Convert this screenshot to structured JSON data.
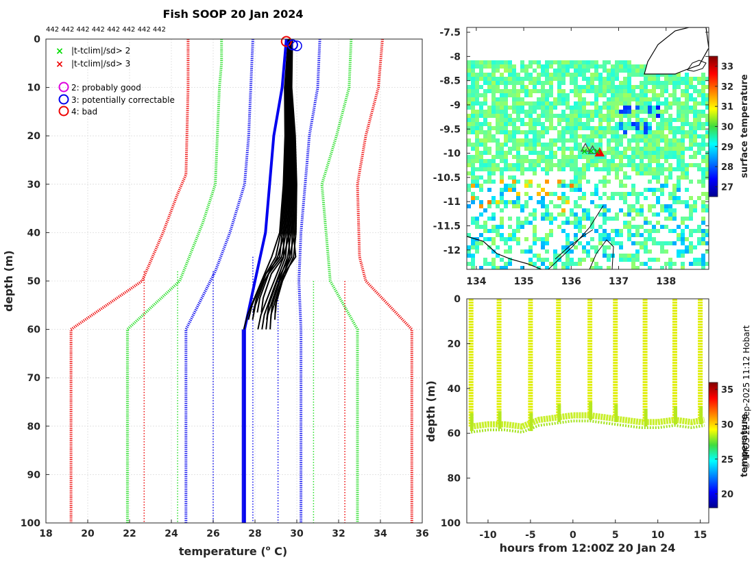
{
  "chart_data": [
    {
      "type": "line",
      "name": "profile-panel",
      "title": "Fish SOOP 20 Jan 2024",
      "profile_counts": "442 442 442 442 442 442 442 442",
      "xlabel": "temperature (",
      "xlabel_unit_sup": "o",
      "xlabel_unit": " C)",
      "ylabel": "depth (m)",
      "xlim": [
        18,
        36
      ],
      "ylim": [
        0,
        100
      ],
      "xticks": [
        18,
        20,
        22,
        24,
        26,
        28,
        30,
        32,
        34,
        36
      ],
      "yticks": [
        0,
        10,
        20,
        30,
        40,
        50,
        60,
        70,
        80,
        90,
        100
      ],
      "legend": [
        {
          "marker": "x",
          "color": "#00dd00",
          "label": "|t-tclim|/sd> 2"
        },
        {
          "marker": "x",
          "color": "#ee0000",
          "label": "|t-tclim|/sd> 3"
        },
        {
          "marker": "o",
          "color": "#dd00dd",
          "label": "2: probably good"
        },
        {
          "marker": "o",
          "color": "#0000ee",
          "label": "3: potentially correctable"
        },
        {
          "marker": "o",
          "color": "#ee0000",
          "label": "4: bad"
        }
      ],
      "series": [
        {
          "name": "red-left-thick",
          "color": "#ee0000",
          "style": "thick",
          "points": [
            [
              24.8,
              0
            ],
            [
              24.8,
              10
            ],
            [
              24.7,
              28
            ],
            [
              24.3,
              32
            ],
            [
              23.6,
              40
            ],
            [
              22.6,
              50
            ],
            [
              19.2,
              60
            ],
            [
              19.2,
              100
            ]
          ]
        },
        {
          "name": "green-left-thick",
          "color": "#22dd22",
          "style": "thick",
          "points": [
            [
              26.4,
              0
            ],
            [
              26.4,
              5
            ],
            [
              26.3,
              10
            ],
            [
              26.1,
              30
            ],
            [
              25.5,
              38
            ],
            [
              24.4,
              50
            ],
            [
              21.9,
              60
            ],
            [
              21.9,
              100
            ]
          ]
        },
        {
          "name": "blue-left-thick",
          "color": "#0000ee",
          "style": "thick",
          "points": [
            [
              27.9,
              0
            ],
            [
              27.7,
              20
            ],
            [
              27.5,
              30
            ],
            [
              26.8,
              40
            ],
            [
              26.1,
              48
            ],
            [
              24.7,
              60
            ],
            [
              24.7,
              100
            ]
          ]
        },
        {
          "name": "blue-center",
          "color": "#0000ee",
          "style": "solid",
          "points": [
            [
              29.5,
              0
            ],
            [
              29.3,
              10
            ],
            [
              28.9,
              20
            ],
            [
              28.5,
              40
            ],
            [
              28.0,
              50
            ],
            [
              27.5,
              60
            ],
            [
              27.5,
              100
            ]
          ]
        },
        {
          "name": "blue-right-thick",
          "color": "#0000ee",
          "style": "thick",
          "points": [
            [
              31.1,
              0
            ],
            [
              31.0,
              10
            ],
            [
              30.6,
              20
            ],
            [
              30.2,
              40
            ],
            [
              30.1,
              50
            ],
            [
              30.2,
              60
            ],
            [
              30.2,
              100
            ]
          ]
        },
        {
          "name": "green-right-thick",
          "color": "#22dd22",
          "style": "thick",
          "points": [
            [
              32.6,
              0
            ],
            [
              32.5,
              10
            ],
            [
              31.9,
              20
            ],
            [
              31.2,
              30
            ],
            [
              31.5,
              45
            ],
            [
              31.6,
              50
            ],
            [
              32.9,
              60
            ],
            [
              32.9,
              100
            ]
          ]
        },
        {
          "name": "red-right-thick",
          "color": "#ee0000",
          "style": "thick",
          "points": [
            [
              34.1,
              0
            ],
            [
              33.9,
              10
            ],
            [
              33.3,
              20
            ],
            [
              32.9,
              30
            ],
            [
              33.0,
              45
            ],
            [
              33.3,
              50
            ],
            [
              35.5,
              60
            ],
            [
              35.5,
              100
            ]
          ]
        },
        {
          "name": "red-left-thin",
          "color": "#ee0000",
          "style": "thin",
          "points": [
            [
              22.7,
              48
            ],
            [
              22.7,
              100
            ]
          ]
        },
        {
          "name": "green-left-thin",
          "color": "#22dd22",
          "style": "thin",
          "points": [
            [
              24.3,
              48
            ],
            [
              24.3,
              100
            ]
          ]
        },
        {
          "name": "blue-left-thin",
          "color": "#0000ee",
          "style": "thin",
          "points": [
            [
              26.0,
              48
            ],
            [
              26.0,
              100
            ]
          ]
        },
        {
          "name": "blue-mid-thin",
          "color": "#0000ee",
          "style": "thin",
          "points": [
            [
              27.9,
              45
            ],
            [
              27.9,
              100
            ]
          ]
        },
        {
          "name": "blue-right-thin",
          "color": "#0000ee",
          "style": "thin",
          "points": [
            [
              29.1,
              50
            ],
            [
              29.1,
              100
            ]
          ]
        },
        {
          "name": "green-right-thin",
          "color": "#22dd22",
          "style": "thin",
          "points": [
            [
              30.8,
              50
            ],
            [
              30.8,
              100
            ]
          ]
        },
        {
          "name": "red-right-thin",
          "color": "#ee0000",
          "style": "thin",
          "points": [
            [
              32.3,
              50
            ],
            [
              32.3,
              100
            ]
          ]
        },
        {
          "name": "profiles-black",
          "color": "#000000",
          "style": "profiles",
          "points": [
            [
              29.7,
              0
            ],
            [
              29.6,
              10
            ],
            [
              29.7,
              20
            ],
            [
              29.7,
              30
            ],
            [
              29.6,
              40
            ],
            [
              29.3,
              45
            ],
            [
              28.7,
              50
            ],
            [
              28.3,
              55
            ],
            [
              28.2,
              58
            ]
          ]
        }
      ],
      "qc_circles": [
        {
          "name": "qc-bad",
          "color": "#ee0000",
          "x": 29.5,
          "y": 0.5
        },
        {
          "name": "qc-correctable",
          "color": "#0000ee",
          "x": 29.8,
          "y": 1.2
        }
      ]
    },
    {
      "type": "heatmap",
      "name": "sst-map",
      "xlim": [
        133.8,
        138.9
      ],
      "ylim": [
        -12.4,
        -7.4
      ],
      "xticks": [
        134,
        135,
        136,
        137,
        138
      ],
      "yticks": [
        -7.5,
        -8,
        -8.5,
        -9,
        -9.5,
        -10,
        -10.5,
        -11,
        -11.5,
        -12
      ],
      "colorbar_label": "surface temperature",
      "colorbar_range": [
        26.5,
        33.5
      ],
      "colorbar_ticks": [
        27,
        28,
        29,
        30,
        31,
        32,
        33
      ],
      "markers": [
        {
          "lon": 136.3,
          "lat": -9.9
        },
        {
          "lon": 136.45,
          "lat": -9.95
        },
        {
          "lon": 136.6,
          "lat": -10.0
        }
      ]
    },
    {
      "type": "scatter",
      "name": "depth-time-section",
      "xlabel": "hours from 12:00Z 20 Jan 24",
      "ylabel": "depth (m)",
      "xlim": [
        -12.5,
        16
      ],
      "ylim": [
        0,
        100
      ],
      "xticks": [
        -10,
        -5,
        0,
        5,
        10,
        15
      ],
      "yticks": [
        0,
        20,
        40,
        60,
        80,
        100
      ],
      "colorbar_label": "temperature",
      "colorbar_range": [
        18,
        36
      ],
      "colorbar_ticks": [
        20,
        25,
        30,
        35
      ],
      "casts_hours": [
        -12,
        -8.7,
        -5,
        -1.7,
        2,
        5,
        8.5,
        12,
        15
      ],
      "bottom_depth": [
        [
          -12,
          57
        ],
        [
          -10,
          56
        ],
        [
          -8,
          56
        ],
        [
          -6,
          57
        ],
        [
          -4,
          54
        ],
        [
          -2,
          53
        ],
        [
          0,
          52
        ],
        [
          2,
          52
        ],
        [
          4,
          53
        ],
        [
          6,
          54
        ],
        [
          8,
          55
        ],
        [
          10,
          55
        ],
        [
          12,
          54
        ],
        [
          14,
          55
        ],
        [
          15.5,
          54
        ]
      ]
    }
  ],
  "credit": "© IMOS 22-Sep-2025 11:12 Hobart"
}
